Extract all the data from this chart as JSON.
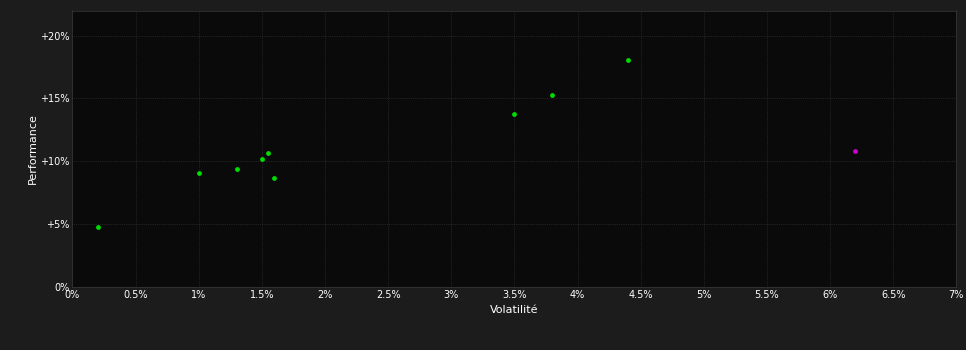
{
  "green_points": [
    [
      0.002,
      0.048
    ],
    [
      0.01,
      0.091
    ],
    [
      0.013,
      0.094
    ],
    [
      0.015,
      0.102
    ],
    [
      0.0155,
      0.107
    ],
    [
      0.016,
      0.087
    ],
    [
      0.035,
      0.138
    ],
    [
      0.038,
      0.153
    ],
    [
      0.044,
      0.181
    ]
  ],
  "purple_point": [
    0.062,
    0.108
  ],
  "green_color": "#00dd00",
  "purple_color": "#cc00cc",
  "background_color": "#1c1c1c",
  "plot_bg_color": "#0a0a0a",
  "grid_color": "#3a3a3a",
  "text_color": "#ffffff",
  "xlabel": "Volatilité",
  "ylabel": "Performance",
  "xlim": [
    0.0,
    0.07
  ],
  "ylim": [
    0.0,
    0.22
  ],
  "xticks": [
    0.0,
    0.005,
    0.01,
    0.015,
    0.02,
    0.025,
    0.03,
    0.035,
    0.04,
    0.045,
    0.05,
    0.055,
    0.06,
    0.065,
    0.07
  ],
  "yticks": [
    0.0,
    0.05,
    0.1,
    0.15,
    0.2
  ],
  "xtick_labels": [
    "0%",
    "0.5%",
    "1%",
    "1.5%",
    "2%",
    "2.5%",
    "3%",
    "3.5%",
    "4%",
    "4.5%",
    "5%",
    "5.5%",
    "6%",
    "6.5%",
    "7%"
  ],
  "ytick_labels": [
    "0%",
    "+5%",
    "+10%",
    "+15%",
    "+20%"
  ],
  "marker_size": 12,
  "figsize": [
    9.66,
    3.5
  ],
  "dpi": 100
}
